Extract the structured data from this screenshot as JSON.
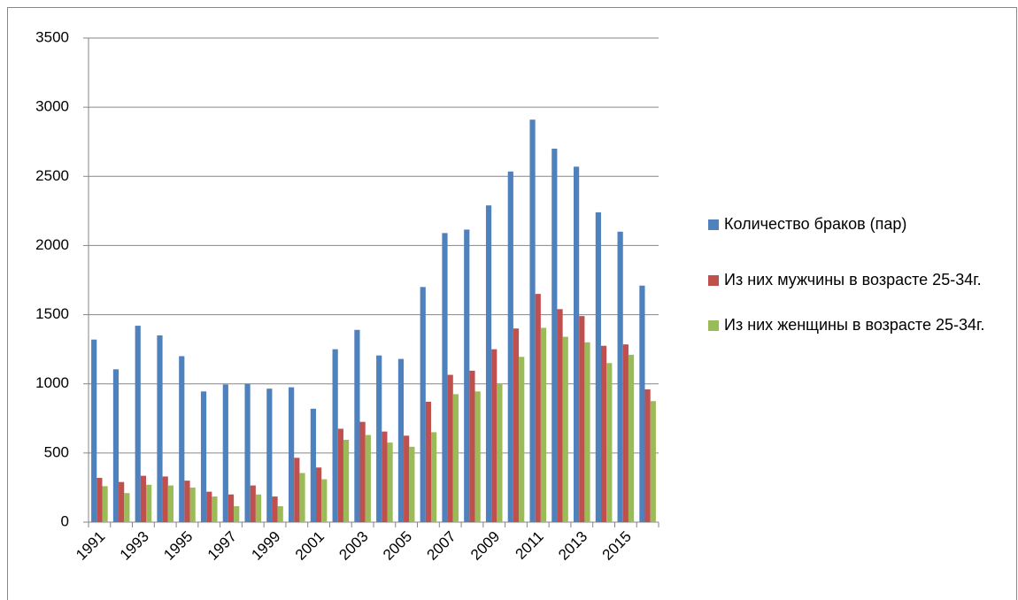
{
  "chart_data": {
    "type": "bar",
    "categories": [
      "1991",
      null,
      "1993",
      null,
      "1995",
      null,
      "1997",
      null,
      "1999",
      null,
      "2001",
      null,
      "2003",
      null,
      "2005",
      null,
      "2007",
      null,
      "2009",
      null,
      "2011",
      null,
      "2013",
      null,
      "2015",
      null
    ],
    "series": [
      {
        "name": "Количество браков (пар)",
        "color": "#4f81bd",
        "values": [
          1320,
          1105,
          1420,
          1350,
          1200,
          945,
          995,
          1000,
          965,
          975,
          820,
          1250,
          1390,
          1205,
          1180,
          1700,
          2090,
          2115,
          2290,
          2535,
          2910,
          2700,
          2570,
          2240,
          2100,
          1710
        ]
      },
      {
        "name": "Из них мужчины в возрасте 25-34г.",
        "color": "#c0504d",
        "values": [
          320,
          290,
          335,
          330,
          300,
          220,
          200,
          265,
          185,
          465,
          395,
          675,
          725,
          655,
          625,
          870,
          1065,
          1095,
          1250,
          1400,
          1650,
          1540,
          1490,
          1275,
          1285,
          960
        ]
      },
      {
        "name": "Из них женщины в возрасте 25-34г.",
        "color": "#9bbb59",
        "values": [
          260,
          210,
          270,
          265,
          250,
          185,
          115,
          200,
          115,
          355,
          310,
          595,
          630,
          575,
          545,
          650,
          925,
          945,
          1000,
          1195,
          1405,
          1340,
          1300,
          1150,
          1210,
          875
        ]
      }
    ],
    "ylim": [
      0,
      3500
    ],
    "yticks": [
      0,
      500,
      1000,
      1500,
      2000,
      2500,
      3000,
      3500
    ],
    "grid": true,
    "legend": "right"
  }
}
